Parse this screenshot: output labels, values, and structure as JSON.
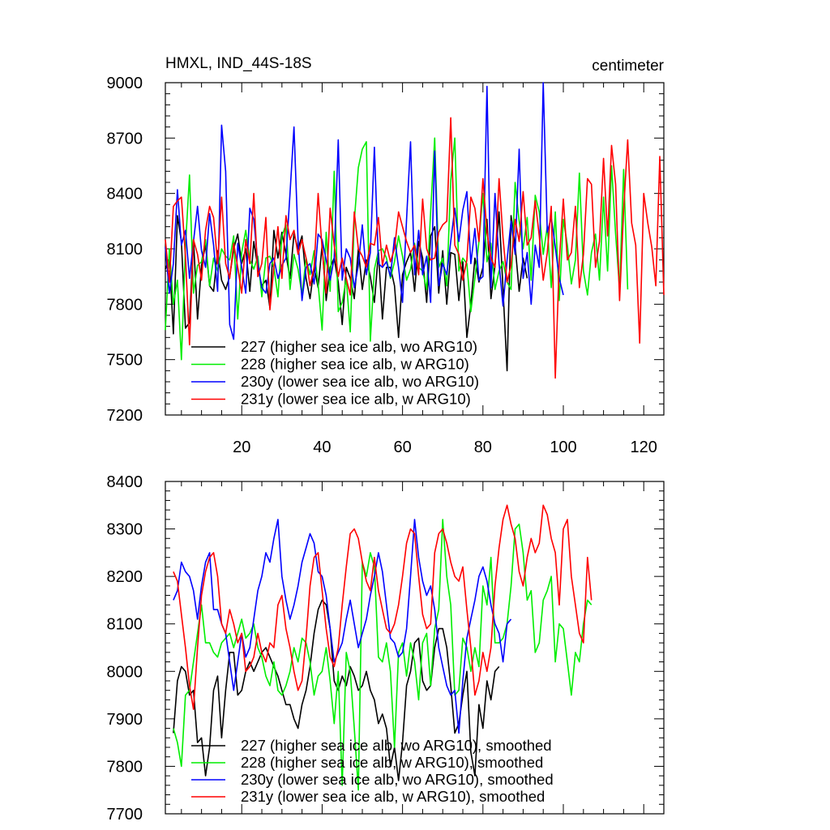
{
  "chart_data": [
    {
      "type": "line",
      "title": "HMXL, IND_44S-18S",
      "units": "centimeter",
      "xlim": [
        1,
        125
      ],
      "ylim": [
        7200,
        9000
      ],
      "xticks": [
        20,
        40,
        60,
        80,
        100,
        120
      ],
      "yticks": [
        7200,
        7500,
        7800,
        8100,
        8400,
        8700,
        9000
      ],
      "xlabel": "",
      "ylabel": "",
      "series": [
        {
          "name": "227 (higher sea ice alb, wo ARG10)",
          "color": "#000000",
          "x_start": 1,
          "values": [
            7990,
            8050,
            7640,
            8280,
            8140,
            7670,
            7700,
            8150,
            7720,
            8010,
            8120,
            7900,
            7870,
            8090,
            7930,
            7880,
            7950,
            8100,
            8180,
            8020,
            8100,
            7870,
            8140,
            8000,
            7900,
            7930,
            7780,
            8200,
            8050,
            8190,
            8070,
            7940,
            8180,
            8100,
            8170,
            7940,
            7830,
            8000,
            7890,
            8120,
            7820,
            8000,
            8050,
            7920,
            7690,
            8000,
            7940,
            7830,
            8100,
            7880,
            8040,
            7950,
            7810,
            8080,
            7720,
            8000,
            8000,
            7900,
            7620,
            7960,
            8030,
            8080,
            7870,
            8140,
            8050,
            7810,
            8170,
            8220,
            7860,
            8090,
            7800,
            8080,
            8070,
            7820,
            8030,
            7620,
            7800,
            8050,
            7920,
            8000,
            8260,
            7830,
            8010,
            8300,
            7880,
            7440,
            8280,
            8120,
            7870,
            8050,
            7940
          ]
        },
        {
          "name": "228 (higher sea ice alb, w ARG10)",
          "color": "#00ee00",
          "x_start": 1,
          "values": [
            7660,
            8100,
            7800,
            7930,
            7500,
            8110,
            8500,
            7860,
            8010,
            8030,
            8150,
            7900,
            8050,
            7980,
            8100,
            8060,
            8040,
            8170,
            7720,
            8080,
            8200,
            8040,
            7990,
            8060,
            7840,
            8050,
            8060,
            8000,
            7840,
            8170,
            8230,
            7880,
            8070,
            7990,
            7850,
            8050,
            7960,
            8090,
            7910,
            7660,
            8190,
            7870,
            8520,
            7760,
            7810,
            7940,
            7650,
            8250,
            8540,
            8640,
            8680,
            7600,
            7990,
            8090,
            8100,
            8050,
            7940,
            8030,
            8170,
            8060,
            7930,
            7990,
            8130,
            8000,
            7980,
            7880,
            8300,
            8700,
            8000,
            8050,
            7900,
            8470,
            8700,
            7980,
            8050,
            8020,
            7760,
            7940,
            8140,
            8400,
            8030,
            8130,
            7880,
            7980,
            8030,
            7920,
            7880,
            8460,
            8250,
            8100,
            8270,
            7930,
            8390,
            8300,
            8070,
            8220,
            7890,
            8300,
            7820,
            8260,
            8120,
            7910,
            8040,
            8510,
            7980,
            7850,
            8080,
            8180,
            7930,
            8380,
            7980,
            8550,
            8180,
            7880,
            8530,
            7880
          ]
        },
        {
          "name": "230y (lower sea ice alb, wo ARG10)",
          "color": "#0000ff",
          "x_start": 1,
          "values": [
            8110,
            7860,
            8020,
            8420,
            8120,
            8200,
            7940,
            8140,
            8330,
            8090,
            8000,
            8290,
            8120,
            7870,
            8770,
            8520,
            7690,
            7610,
            8130,
            8000,
            7860,
            8320,
            8260,
            8020,
            7890,
            7860,
            8020,
            8050,
            7940,
            8010,
            8050,
            8400,
            8760,
            8150,
            7820,
            8000,
            8020,
            7910,
            8180,
            8150,
            8040,
            7930,
            8050,
            8690,
            7930,
            8100,
            8050,
            7890,
            8010,
            8230,
            7960,
            8080,
            8650,
            8020,
            8000,
            8030,
            7950,
            8160,
            8000,
            7810,
            8260,
            8680,
            7960,
            8200,
            7960,
            8060,
            7810,
            8630,
            7900,
            8020,
            7960,
            8140,
            8320,
            8140,
            8310,
            8410,
            8020,
            8210,
            7930,
            7950,
            8980,
            7890,
            8400,
            8020,
            7790,
            8040,
            8250,
            8070,
            8640,
            7940,
            8080,
            7800,
            8120,
            8000,
            9000,
            8190,
            8270,
            8110,
            7940,
            7850
          ]
        },
        {
          "name": "231y (lower sea ice alb, w ARG10)",
          "color": "#ff0000",
          "x_start": 1,
          "values": [
            8150,
            7920,
            8330,
            8360,
            8380,
            8060,
            7580,
            8150,
            8070,
            7930,
            8200,
            8330,
            8270,
            8020,
            8380,
            8020,
            7940,
            8130,
            8000,
            7860,
            8150,
            8020,
            8400,
            7950,
            8020,
            8270,
            7770,
            8000,
            8220,
            7940,
            8280,
            8150,
            8200,
            8070,
            8150,
            8050,
            7900,
            8000,
            8400,
            8100,
            7860,
            8320,
            8120,
            7950,
            8050,
            7940,
            7850,
            8300,
            8100,
            8060,
            8000,
            8130,
            8120,
            8270,
            8010,
            8120,
            8030,
            8100,
            8300,
            8220,
            8140,
            8080,
            8120,
            7960,
            8370,
            8100,
            8040,
            8050,
            8190,
            8230,
            8250,
            8810,
            8120,
            8070,
            7930,
            8040,
            8380,
            8320,
            8140,
            8480,
            8190,
            8050,
            8000,
            8480,
            8160,
            7920,
            8010,
            8260,
            8140,
            8410,
            8120,
            8160,
            8360,
            8170,
            7930,
            8080,
            8330,
            7400,
            8030,
            8370,
            8040,
            8080,
            8330,
            7890,
            8070,
            8480,
            8450,
            8000,
            8140,
            8590,
            8170,
            8660,
            8450,
            7820,
            8310,
            8690,
            8240,
            8120,
            7590,
            8400,
            8240,
            8110,
            7900,
            8600,
            7850
          ]
        }
      ]
    },
    {
      "type": "line",
      "title": "",
      "xlim": [
        1,
        125
      ],
      "ylim": [
        7700,
        8400
      ],
      "xticks": [
        20,
        40,
        60,
        80,
        100,
        120
      ],
      "yticks": [
        7700,
        7800,
        7900,
        8000,
        8100,
        8200,
        8300,
        8400
      ],
      "xlabel": "",
      "ylabel": "",
      "series": [
        {
          "name": "227 (higher sea ice alb, wo ARG10), smoothed",
          "color": "#000000",
          "x_start": 3,
          "values": [
            7870,
            7980,
            8010,
            8000,
            7950,
            7960,
            7850,
            7860,
            7780,
            7840,
            7960,
            7990,
            7860,
            7960,
            8040,
            8040,
            7950,
            7960,
            8000,
            8020,
            8000,
            8020,
            8040,
            8050,
            8030,
            8010,
            7990,
            7960,
            7930,
            7930,
            7900,
            7880,
            7930,
            7960,
            8010,
            8080,
            8130,
            8150,
            8140,
            8090,
            7980,
            7960,
            7990,
            7970,
            8010,
            7990,
            7960,
            7970,
            8000,
            7960,
            7940,
            7890,
            7910,
            7880,
            7800,
            7840,
            7770,
            7850,
            7970,
            8000,
            8060,
            8070,
            7980,
            7960,
            7970,
            8050,
            8090,
            8090,
            8050,
            7970,
            7870,
            7890,
            7950,
            8000,
            7830,
            7780,
            7930,
            7880,
            7980,
            7940,
            8000,
            8010
          ]
        },
        {
          "name": "228 (higher sea ice alb, w ARG10), smoothed",
          "color": "#00ee00",
          "x_start": 3,
          "values": [
            7880,
            7850,
            7800,
            7950,
            7960,
            8020,
            8080,
            8140,
            8060,
            8060,
            8040,
            8030,
            8060,
            8070,
            8080,
            8050,
            8080,
            8110,
            8070,
            8080,
            8100,
            8050,
            8030,
            7990,
            7970,
            8020,
            7960,
            7950,
            7970,
            8000,
            8050,
            8020,
            8070,
            8060,
            8020,
            7950,
            7990,
            8000,
            8050,
            7980,
            7890,
            8000,
            7760,
            8040,
            8000,
            7880,
            7750,
            8230,
            8200,
            8250,
            8220,
            8030,
            8020,
            8060,
            8000,
            7840,
            8040,
            8060,
            7990,
            8060,
            8020,
            7940,
            8060,
            8080,
            7970,
            8090,
            8130,
            8320,
            8200,
            8140,
            7950,
            7960,
            8070,
            8050,
            8000,
            8050,
            8010,
            8180,
            8140,
            8240,
            8060,
            8060,
            8070,
            8100,
            8180,
            8300,
            8310,
            8250,
            8150,
            8170,
            8040,
            8060,
            8150,
            8170,
            8200,
            8020,
            8100,
            8090,
            8020,
            7950,
            8040,
            8020,
            8100,
            8150,
            8140
          ]
        },
        {
          "name": "230y (lower sea ice alb, wo ARG10), smoothed",
          "color": "#0000ff",
          "x_start": 3,
          "values": [
            8150,
            8170,
            8230,
            8210,
            8200,
            8170,
            8110,
            8180,
            8230,
            8250,
            8130,
            8130,
            8100,
            8080,
            8020,
            7960,
            8020,
            8080,
            8030,
            8050,
            8110,
            8170,
            8200,
            8250,
            8230,
            8280,
            8320,
            8200,
            8150,
            8110,
            8140,
            8180,
            8230,
            8260,
            8290,
            8270,
            8210,
            8200,
            8160,
            8090,
            8020,
            8040,
            8060,
            8110,
            8150,
            8100,
            8050,
            8080,
            8110,
            8160,
            8200,
            8250,
            8210,
            8140,
            8070,
            8060,
            8030,
            8040,
            8090,
            8200,
            8320,
            8240,
            8190,
            8160,
            8180,
            8130,
            8050,
            8010,
            7970,
            7950,
            7960,
            7870,
            7980,
            8070,
            8110,
            8150,
            8200,
            8220,
            8190,
            8140,
            8100,
            8080,
            8020,
            8100,
            8110
          ]
        },
        {
          "name": "231y (lower sea ice alb, w ARG10), smoothed",
          "color": "#ff0000",
          "x_start": 3,
          "values": [
            8210,
            8190,
            8120,
            8050,
            7970,
            7920,
            8050,
            8160,
            8210,
            8240,
            8250,
            8200,
            8100,
            8080,
            8130,
            8100,
            8060,
            8080,
            8000,
            8010,
            8030,
            8080,
            8040,
            8020,
            8060,
            8050,
            8140,
            8160,
            8090,
            8050,
            8000,
            7960,
            7980,
            8070,
            8180,
            8240,
            8250,
            8170,
            8090,
            8030,
            8010,
            8050,
            8140,
            8220,
            8290,
            8300,
            8280,
            8230,
            8190,
            8170,
            8240,
            8170,
            8130,
            8090,
            8080,
            8100,
            8140,
            8200,
            8270,
            8300,
            8290,
            8200,
            8120,
            8090,
            8100,
            8250,
            8290,
            8300,
            8270,
            8230,
            8200,
            8190,
            8220,
            8130,
            8050,
            7950,
            7980,
            8040,
            8000,
            8050,
            8180,
            8260,
            8320,
            8350,
            8310,
            8280,
            8210,
            8180,
            8240,
            8280,
            8250,
            8270,
            8350,
            8330,
            8280,
            8250,
            8140,
            8300,
            8320,
            8200,
            8140,
            8080,
            8060,
            8240,
            8150
          ]
        }
      ]
    }
  ],
  "legends": [
    [
      {
        "label": "227 (higher sea ice alb, wo ARG10)",
        "color": "#000000"
      },
      {
        "label": "228 (higher sea ice alb, w ARG10)",
        "color": "#00ee00"
      },
      {
        "label": "230y (lower sea ice alb, wo ARG10)",
        "color": "#0000ff"
      },
      {
        "label": "231y (lower sea ice alb, w ARG10)",
        "color": "#ff0000"
      }
    ],
    [
      {
        "label": "227 (higher sea ice alb, wo ARG10), smoothed",
        "color": "#000000"
      },
      {
        "label": "228 (higher sea ice alb, w ARG10), smoothed",
        "color": "#00ee00"
      },
      {
        "label": "230y (lower sea ice alb, wo ARG10), smoothed",
        "color": "#0000ff"
      },
      {
        "label": "231y (lower sea ice alb, w ARG10), smoothed",
        "color": "#ff0000"
      }
    ]
  ]
}
